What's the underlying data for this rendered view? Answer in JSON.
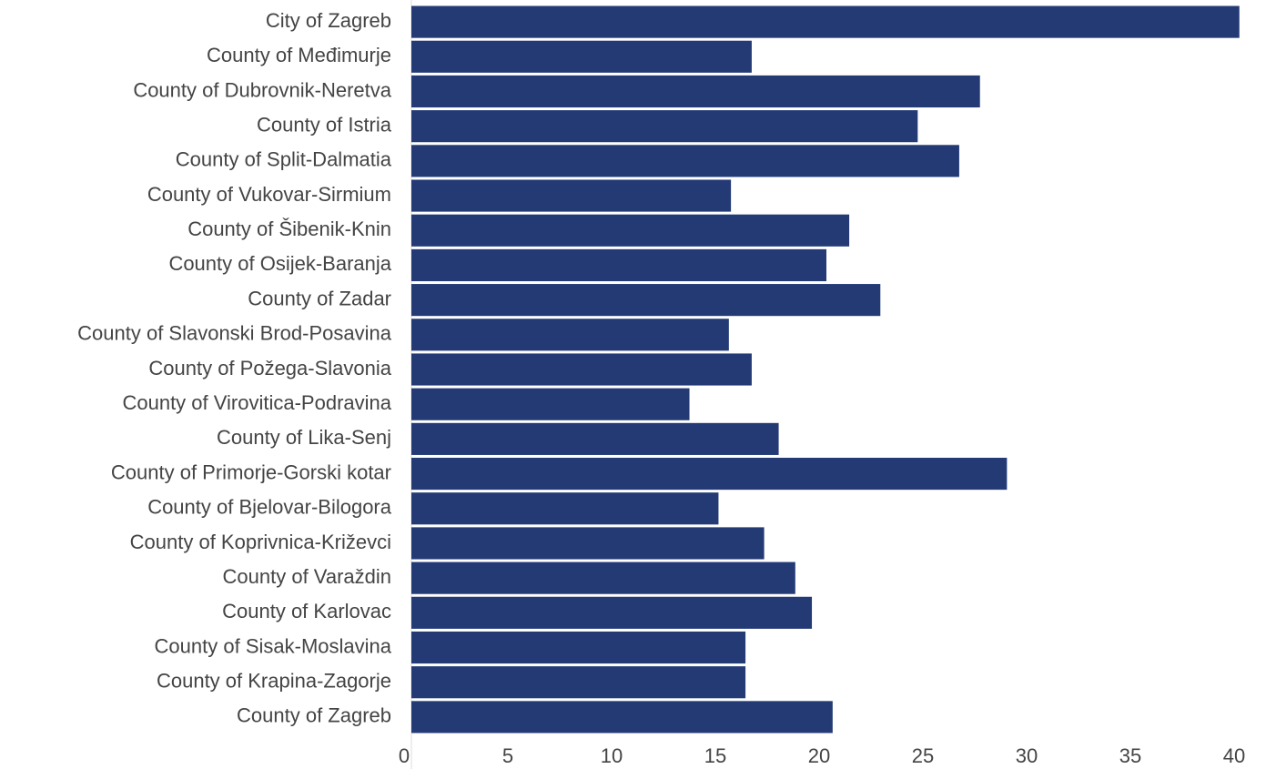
{
  "chart_data": {
    "type": "barh",
    "categories": [
      "City of Zagreb",
      "County of Međimurje",
      "County of Dubrovnik-Neretva",
      "County of Istria",
      "County of Split-Dalmatia",
      "County of Vukovar-Sirmium",
      "County of Šibenik-Knin",
      "County of Osijek-Baranja",
      "County of Zadar",
      "County of Slavonski Brod-Posavina",
      "County of Požega-Slavonia",
      "County of Virovitica-Podravina",
      "County of Lika-Senj",
      "County of Primorje-Gorski kotar",
      "County of Bjelovar-Bilogora",
      "County of Koprivnica-Križevci",
      "County of Varaždin",
      "County of Karlovac",
      "County of Sisak-Moslavina",
      "County of Krapina-Zagorje",
      "County of Zagreb"
    ],
    "values": [
      39.9,
      16.4,
      27.4,
      24.4,
      26.4,
      15.4,
      21.1,
      20.0,
      22.6,
      15.3,
      16.4,
      13.4,
      17.7,
      28.7,
      14.8,
      17.0,
      18.5,
      19.3,
      16.1,
      16.1,
      20.3
    ],
    "color": "#233a75",
    "xlim": [
      0,
      40
    ],
    "xticks": [
      0,
      5,
      10,
      15,
      20,
      25,
      30,
      35,
      40
    ]
  }
}
